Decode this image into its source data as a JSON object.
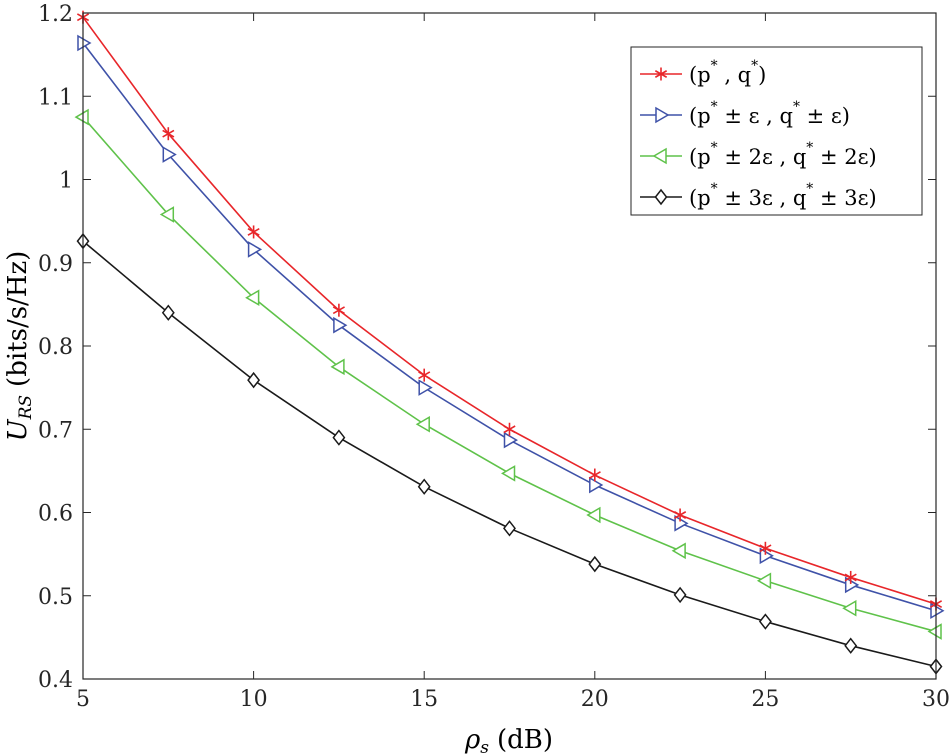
{
  "chart_data": {
    "type": "line",
    "title": "",
    "xlabel_main": "ρ",
    "xlabel_sub": "s",
    "xlabel_unit": "(dB)",
    "ylabel_main": "U",
    "ylabel_sub": "RS",
    "ylabel_unit": "(bits/s/Hz)",
    "xlim": [
      5,
      30
    ],
    "ylim": [
      0.4,
      1.2
    ],
    "xticks": [
      5,
      10,
      15,
      20,
      25,
      30
    ],
    "yticks": [
      0.4,
      0.5,
      0.6,
      0.7,
      0.8,
      0.9,
      1,
      1.1,
      1.2
    ],
    "ytick_labels": [
      "0.4",
      "0.5",
      "0.6",
      "0.7",
      "0.8",
      "0.9",
      "1",
      "1.1",
      "1.2"
    ],
    "x": [
      5,
      7.5,
      10,
      12.5,
      15,
      17.5,
      20,
      22.5,
      25,
      27.5,
      30
    ],
    "legend_position": "top-right",
    "series": [
      {
        "name": "(p* , q*)",
        "label_parts": [
          "(p",
          "*",
          " , q",
          "*",
          ")"
        ],
        "color": "#e8262a",
        "marker": "star",
        "values": [
          1.195,
          1.055,
          0.937,
          0.843,
          0.765,
          0.7,
          0.645,
          0.597,
          0.557,
          0.522,
          0.49
        ]
      },
      {
        "name": "(p* ± ε , q* ± ε)",
        "label_parts": [
          "(p",
          "*",
          " ± ε , q",
          "*",
          " ± ε)"
        ],
        "color": "#3f52a8",
        "marker": "triangle-right",
        "values": [
          1.164,
          1.03,
          0.916,
          0.825,
          0.75,
          0.687,
          0.633,
          0.587,
          0.548,
          0.513,
          0.482
        ]
      },
      {
        "name": "(p* ± 2ε , q* ± 2ε)",
        "label_parts": [
          "(p",
          "*",
          " ± 2ε , q",
          "*",
          " ± 2ε)"
        ],
        "color": "#5fc24a",
        "marker": "triangle-left",
        "values": [
          1.075,
          0.958,
          0.858,
          0.775,
          0.706,
          0.647,
          0.597,
          0.554,
          0.518,
          0.485,
          0.457
        ]
      },
      {
        "name": "(p* ± 3ε , q* ± 3ε)",
        "label_parts": [
          "(p",
          "*",
          " ± 3ε , q",
          "*",
          " ± 3ε)"
        ],
        "color": "#1a1a1a",
        "marker": "diamond",
        "values": [
          0.926,
          0.84,
          0.759,
          0.69,
          0.631,
          0.581,
          0.538,
          0.501,
          0.469,
          0.44,
          0.415
        ]
      }
    ]
  }
}
